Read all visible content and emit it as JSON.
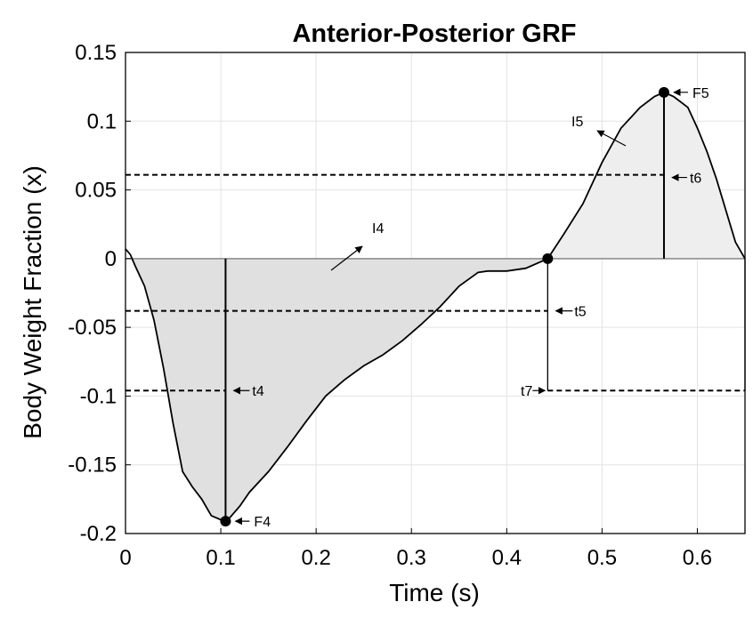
{
  "chart_data": {
    "type": "area",
    "title": "Anterior-Posterior GRF",
    "xlabel": "Time (s)",
    "ylabel": "Body Weight Fraction (x)",
    "xlim": [
      0,
      0.65
    ],
    "ylim": [
      -0.2,
      0.15
    ],
    "grid": true,
    "x_ticks": [
      0,
      0.1,
      0.2,
      0.3,
      0.4,
      0.5,
      0.6
    ],
    "x_tick_labels": [
      "0",
      "0.1",
      "0.2",
      "0.3",
      "0.4",
      "0.5",
      "0.6"
    ],
    "y_ticks": [
      0.15,
      0.1,
      0.05,
      0,
      -0.05,
      -0.1,
      -0.15,
      -0.2
    ],
    "y_tick_labels": [
      "0.15",
      "0.1",
      "0.05",
      "0",
      "-0.05",
      "-0.1",
      "-0.15",
      "-0.2"
    ],
    "series": [
      {
        "x": [
          0,
          0.005,
          0.01,
          0.02,
          0.03,
          0.04,
          0.05,
          0.06,
          0.07,
          0.08,
          0.09,
          0.1,
          0.105,
          0.11,
          0.12,
          0.13,
          0.15,
          0.17,
          0.19,
          0.21,
          0.23,
          0.25,
          0.27,
          0.29,
          0.31,
          0.33,
          0.35,
          0.37,
          0.38,
          0.4,
          0.42,
          0.443,
          0.46,
          0.48,
          0.5,
          0.52,
          0.54,
          0.555,
          0.565,
          0.575,
          0.59,
          0.6,
          0.61,
          0.62,
          0.63,
          0.64,
          0.65
        ],
        "y": [
          0.007,
          0.003,
          -0.005,
          -0.02,
          -0.045,
          -0.08,
          -0.12,
          -0.155,
          -0.166,
          -0.175,
          -0.187,
          -0.19,
          -0.191,
          -0.188,
          -0.18,
          -0.17,
          -0.155,
          -0.137,
          -0.118,
          -0.1,
          -0.088,
          -0.078,
          -0.07,
          -0.06,
          -0.048,
          -0.035,
          -0.02,
          -0.01,
          -0.009,
          -0.009,
          -0.007,
          0.0,
          0.018,
          0.04,
          0.07,
          0.095,
          0.11,
          0.118,
          0.121,
          0.118,
          0.11,
          0.095,
          0.078,
          0.058,
          0.035,
          0.012,
          0.0
        ]
      }
    ],
    "thresholds": [
      {
        "label": "t4",
        "y": -0.096
      },
      {
        "label": "t5",
        "y": -0.038
      },
      {
        "label": "t6",
        "y": 0.061
      },
      {
        "label": "t7",
        "y": -0.096
      }
    ],
    "points": [
      {
        "label": "F4",
        "x": 0.105,
        "y": -0.191
      },
      {
        "label": "F5",
        "x": 0.565,
        "y": 0.121
      },
      {
        "label": "",
        "x": 0.443,
        "y": 0.0
      }
    ],
    "region_labels": [
      "I4",
      "I5"
    ]
  }
}
